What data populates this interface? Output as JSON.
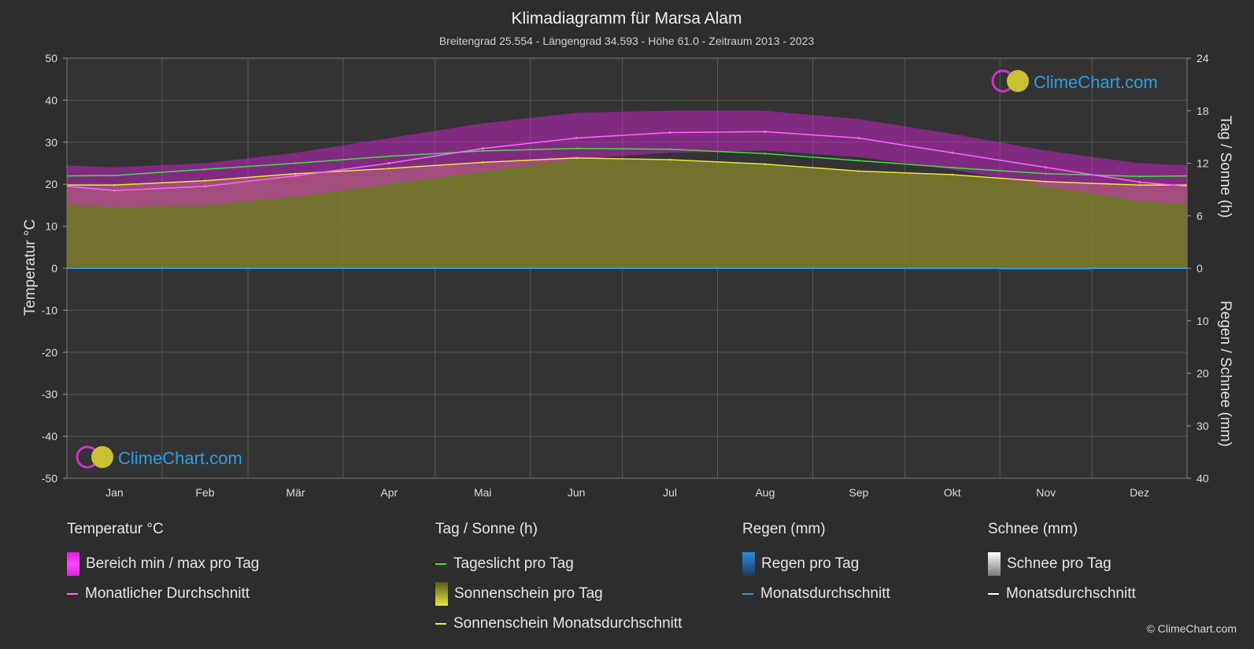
{
  "header": {
    "title": "Klimadiagramm für Marsa Alam",
    "subtitle": "Breitengrad 25.554 - Längengrad 34.593 - Höhe 61.0 - Zeitraum 2013 - 2023"
  },
  "axes": {
    "left_label": "Temperatur °C",
    "right_top_label": "Tag / Sonne (h)",
    "right_bottom_label": "Regen / Schnee (mm)",
    "left_ticks": [
      "50",
      "40",
      "30",
      "20",
      "10",
      "0",
      "-10",
      "-20",
      "-30",
      "-40",
      "-50"
    ],
    "right_top_ticks": [
      "24",
      "18",
      "12",
      "6",
      "0"
    ],
    "right_bottom_ticks": [
      "10",
      "20",
      "30",
      "40"
    ]
  },
  "watermark": {
    "text": "ClimeChart.com"
  },
  "chart_data": {
    "type": "line",
    "title": "Klimadiagramm für Marsa Alam",
    "categories": [
      "Jan",
      "Feb",
      "Mär",
      "Apr",
      "Mai",
      "Jun",
      "Jul",
      "Aug",
      "Sep",
      "Okt",
      "Nov",
      "Dez"
    ],
    "temp_ylim": [
      -50,
      50
    ],
    "sun_ylim": [
      0,
      24
    ],
    "rain_ylim": [
      0,
      40
    ],
    "series": [
      {
        "name": "Monatlicher Durchschnitt",
        "unit": "°C",
        "color": "#ff66ff",
        "values": [
          18.5,
          19.5,
          22,
          25,
          28.5,
          31,
          32.3,
          32.5,
          31,
          27.5,
          24,
          20.5
        ]
      },
      {
        "name": "Tageslicht pro Tag",
        "unit": "h",
        "color": "#44dd44",
        "values": [
          10.6,
          11.3,
          12.0,
          12.8,
          13.4,
          13.7,
          13.6,
          13.1,
          12.3,
          11.5,
          10.8,
          10.5
        ]
      },
      {
        "name": "Sonnenschein Monatsdurchschnitt",
        "unit": "h",
        "color": "#e8e83a",
        "values": [
          9.5,
          10.0,
          10.8,
          11.4,
          12.1,
          12.6,
          12.4,
          11.9,
          11.1,
          10.7,
          9.9,
          9.5
        ]
      },
      {
        "name": "Bereich min / max pro Tag",
        "unit": "°C",
        "color": "#dd22dd",
        "min": [
          14.5,
          15,
          17,
          20,
          23,
          26,
          27.5,
          28,
          26.5,
          23.5,
          19.5,
          16
        ],
        "max": [
          24,
          25,
          27.5,
          31,
          34.5,
          37,
          37.5,
          37.5,
          35.5,
          32,
          28,
          25
        ]
      },
      {
        "name": "Monatsdurchschnitt Regen",
        "unit": "mm",
        "color": "#3399dd",
        "values": [
          0.1,
          0.1,
          0.1,
          0.0,
          0.0,
          0.0,
          0.0,
          0.0,
          0.0,
          0.2,
          0.3,
          0.1
        ]
      }
    ]
  },
  "legend": {
    "temperature": {
      "title": "Temperatur °C",
      "items": [
        {
          "label": "Bereich min / max pro Tag",
          "color": "#dd22dd"
        },
        {
          "label": "Monatlicher Durchschnitt",
          "color": "#ff66ff"
        }
      ]
    },
    "sun": {
      "title": "Tag / Sonne (h)",
      "items": [
        {
          "label": "Tageslicht pro Tag",
          "color": "#44dd44"
        },
        {
          "label": "Sonnenschein pro Tag",
          "color": "#c8c83a"
        },
        {
          "label": "Sonnenschein Monatsdurchschnitt",
          "color": "#e8e83a"
        }
      ]
    },
    "rain": {
      "title": "Regen (mm)",
      "items": [
        {
          "label": "Regen pro Tag",
          "color": "#2a8de0"
        },
        {
          "label": "Monatsdurchschnitt",
          "color": "#3399dd"
        }
      ]
    },
    "snow": {
      "title": "Schnee (mm)",
      "items": [
        {
          "label": "Schnee pro Tag",
          "color": "#dddddd"
        },
        {
          "label": "Monatsdurchschnitt",
          "color": "#ffffff"
        }
      ]
    }
  },
  "footer": {
    "copyright": "© ClimeChart.com"
  }
}
